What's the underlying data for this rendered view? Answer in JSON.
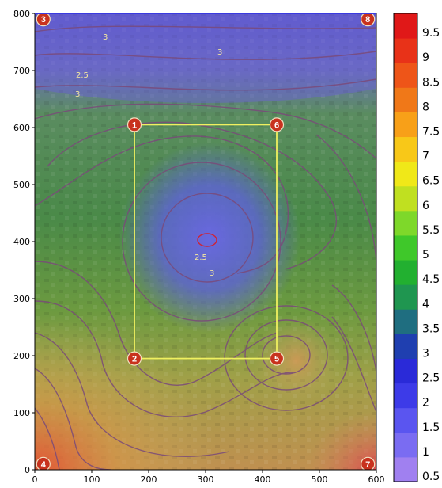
{
  "map": {
    "axes": {
      "x_ticks": [
        "0",
        "100",
        "200",
        "300",
        "400",
        "500",
        "600"
      ],
      "y_ticks": [
        "0",
        "100",
        "200",
        "300",
        "400",
        "500",
        "600",
        "700",
        "800"
      ]
    },
    "colorbar": {
      "labels": [
        "0.5",
        "1",
        "1.5",
        "2",
        "2.5",
        "3",
        "3.5",
        "4",
        "4.5",
        "5",
        "5.5",
        "6",
        "6.5",
        "7",
        "7.5",
        "8",
        "8.5",
        "9",
        "9.5"
      ],
      "colors": [
        "#a080f0",
        "#7a6cf2",
        "#5a55f0",
        "#3d3be8",
        "#2a2ad8",
        "#1f3fb0",
        "#1f6e80",
        "#1f9650",
        "#22b030",
        "#3fc82a",
        "#7ed82a",
        "#c0e020",
        "#f0e818",
        "#f8c818",
        "#f8a018",
        "#f07818",
        "#ee5518",
        "#e83218",
        "#e01818"
      ]
    },
    "markers": [
      {
        "id": "1",
        "x": 175,
        "y": 605
      },
      {
        "id": "2",
        "x": 175,
        "y": 195
      },
      {
        "id": "3",
        "x": 15,
        "y": 790
      },
      {
        "id": "4",
        "x": 15,
        "y": 10
      },
      {
        "id": "5",
        "x": 425,
        "y": 195
      },
      {
        "id": "6",
        "x": 425,
        "y": 605
      },
      {
        "id": "7",
        "x": 585,
        "y": 10
      },
      {
        "id": "8",
        "x": 585,
        "y": 790
      }
    ],
    "contour_labels": [
      "3",
      "3",
      "2.5",
      "3",
      "2.5",
      "3"
    ],
    "area_rectangle": {
      "x1": 175,
      "y1": 195,
      "x2": 425,
      "y2": 605
    }
  }
}
